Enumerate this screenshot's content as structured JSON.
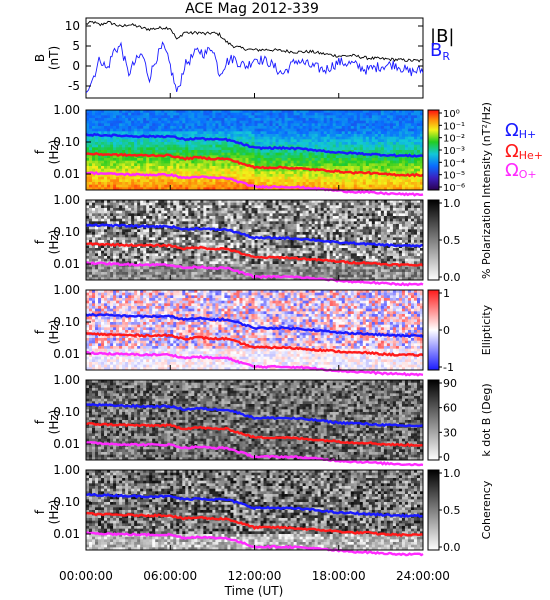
{
  "chart_data": {
    "type": "spectrogram",
    "title": "ACE Mag 2012-339",
    "xlabel": "Time (UT)",
    "x_ticks": [
      "00:00:00",
      "06:00:00",
      "12:00:00",
      "18:00:00",
      "24:00:00"
    ],
    "x_range_hours": [
      0,
      24
    ],
    "panels": [
      {
        "ylabel_top": "B",
        "ylabel_bottom": "(nT)",
        "type": "line",
        "y_ticks": [
          "10",
          "5",
          "0",
          "-5"
        ],
        "ylim": [
          -8,
          12
        ],
        "legend": [
          {
            "label": "|B|",
            "color": "#000000"
          },
          {
            "label": "B",
            "sub": "R",
            "color": "#1a1aff"
          }
        ],
        "series": [
          {
            "name": "|B|",
            "color": "#000000",
            "x": [
              0,
              0.5,
              1,
              1.5,
              2,
              2.5,
              3,
              3.5,
              4,
              4.5,
              5,
              5.5,
              6,
              6.5,
              7,
              7.5,
              8,
              8.5,
              9,
              9.5,
              10,
              10.5,
              11,
              11.5,
              12,
              13,
              14,
              15,
              16,
              17,
              18,
              19,
              20,
              21,
              22,
              23,
              24
            ],
            "y": [
              10.5,
              11,
              10.2,
              11,
              10.5,
              9.8,
              10.4,
              10.1,
              9.5,
              9.2,
              9.4,
              9.6,
              9.5,
              6.5,
              8.5,
              8.2,
              8.4,
              8.0,
              8.3,
              7.9,
              6.0,
              5.0,
              4.5,
              4.2,
              4.0,
              4.1,
              3.8,
              3.5,
              3.6,
              3.0,
              2.5,
              2.6,
              2.0,
              1.8,
              1.6,
              1.4,
              1.3
            ]
          },
          {
            "name": "BR",
            "color": "#1a1aff",
            "x": [
              0,
              0.5,
              1,
              1.5,
              2,
              2.5,
              3,
              3.5,
              4,
              4.5,
              5,
              5.5,
              6,
              6.5,
              7,
              7.5,
              8,
              8.5,
              9,
              9.5,
              10,
              10.5,
              11,
              11.5,
              12,
              13,
              14,
              15,
              16,
              17,
              18,
              19,
              20,
              21,
              22,
              23,
              24
            ],
            "y": [
              -6,
              -3,
              2,
              -1,
              4,
              5,
              -2,
              1,
              3,
              -3,
              2,
              5,
              0,
              -7,
              0,
              2,
              4,
              3,
              5,
              -2,
              1,
              2,
              0.5,
              0,
              2,
              1,
              -2,
              1.5,
              0,
              -1,
              1,
              0.5,
              -1,
              0,
              0.5,
              -1.5,
              -1
            ]
          }
        ]
      },
      {
        "ylabel_top": "f",
        "ylabel_bottom": "(Hz)",
        "type": "heatmap",
        "y_ticks": [
          "1.00",
          "0.10",
          "0.01"
        ],
        "cbar_label": "Intensity (nT²/Hz)",
        "cbar_ticks": [
          "10⁰",
          "10⁻¹",
          "10⁻²",
          "10⁻³",
          "10⁻⁴",
          "10⁻⁵",
          "10⁻⁶"
        ],
        "cbar_colormap": "rainbow",
        "cyclotron_legend": [
          {
            "label": "Ω",
            "sub": "H+",
            "color": "#1a1aff"
          },
          {
            "label": "Ω",
            "sub": "He+",
            "color": "#ff1a1a"
          },
          {
            "label": "Ω",
            "sub": "O+",
            "color": "#ff2bff"
          }
        ]
      },
      {
        "ylabel_top": "f",
        "ylabel_bottom": "(Hz)",
        "type": "heatmap",
        "y_ticks": [
          "1.00",
          "0.10",
          "0.01"
        ],
        "cbar_label": "% Polarization",
        "cbar_ticks": [
          "1.0",
          "0.5",
          "0.0"
        ],
        "cbar_colormap": "gray"
      },
      {
        "ylabel_top": "f",
        "ylabel_bottom": "(Hz)",
        "type": "heatmap",
        "y_ticks": [
          "1.00",
          "0.10",
          "0.01"
        ],
        "cbar_label": "Ellipticity",
        "cbar_ticks": [
          "1",
          "0",
          "-1"
        ],
        "cbar_colormap": "blue-white-red"
      },
      {
        "ylabel_top": "f",
        "ylabel_bottom": "(Hz)",
        "type": "heatmap",
        "y_ticks": [
          "1.00",
          "0.10",
          "0.01"
        ],
        "cbar_label": "k dot B (Deg)",
        "cbar_ticks": [
          "90",
          "60",
          "30",
          "0"
        ],
        "cbar_colormap": "gray"
      },
      {
        "ylabel_top": "f",
        "ylabel_bottom": "(Hz)",
        "type": "heatmap",
        "y_ticks": [
          "1.00",
          "0.10",
          "0.01"
        ],
        "cbar_label": "Coherency",
        "cbar_ticks": [
          "1.0",
          "0.5",
          "0.0"
        ],
        "cbar_colormap": "gray"
      }
    ],
    "cyclotron_lines": {
      "x": [
        0,
        2,
        4,
        6,
        7,
        8,
        9,
        10,
        11,
        12,
        14,
        15,
        16,
        17,
        18,
        19,
        20,
        21,
        22,
        23,
        24
      ],
      "H+": [
        0.17,
        0.16,
        0.15,
        0.15,
        0.12,
        0.13,
        0.12,
        0.12,
        0.09,
        0.065,
        0.065,
        0.062,
        0.058,
        0.052,
        0.046,
        0.045,
        0.042,
        0.04,
        0.038,
        0.037,
        0.037
      ],
      "He+": [
        0.043,
        0.04,
        0.038,
        0.038,
        0.03,
        0.033,
        0.03,
        0.03,
        0.022,
        0.016,
        0.016,
        0.015,
        0.014,
        0.013,
        0.012,
        0.011,
        0.011,
        0.01,
        0.0095,
        0.0093,
        0.0093
      ],
      "O+": [
        0.011,
        0.01,
        0.0095,
        0.0095,
        0.0075,
        0.0082,
        0.0075,
        0.0075,
        0.0055,
        0.004,
        0.004,
        0.0039,
        0.0036,
        0.0033,
        0.003,
        0.0028,
        0.0027,
        0.0025,
        0.0024,
        0.0023,
        0.0023
      ]
    },
    "grid": false
  }
}
